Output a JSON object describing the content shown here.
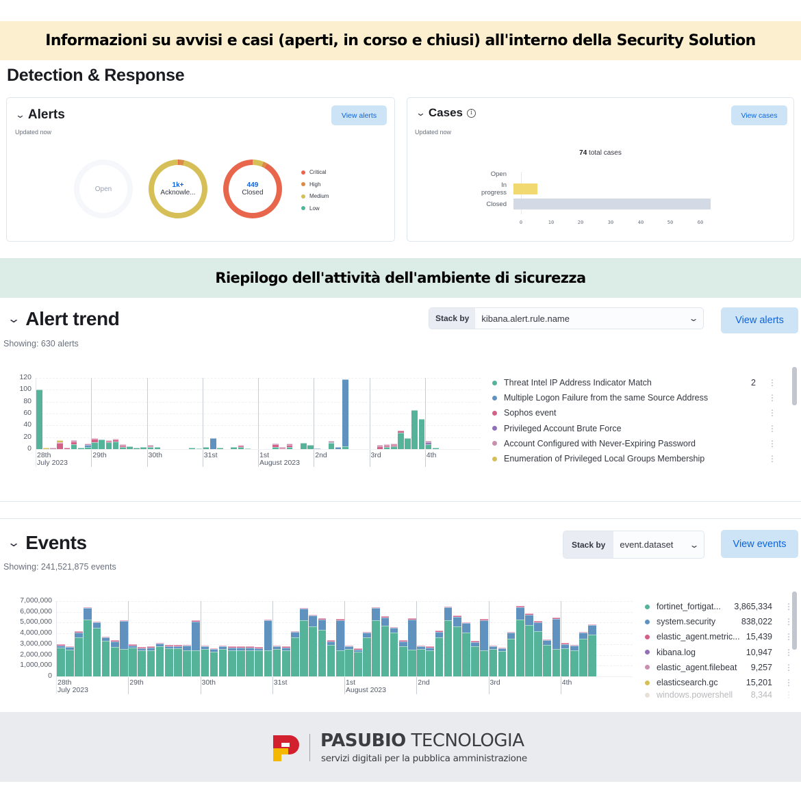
{
  "banners": {
    "top": "Informazioni su avvisi e casi (aperti, in corso e chiusi) all'interno della Security Solution",
    "middle": "Riepilogo dell'attività dell'ambiente di sicurezza"
  },
  "section_title": "Detection & Response",
  "alerts_panel": {
    "title": "Alerts",
    "updated": "Updated now",
    "button": "View alerts",
    "donuts": [
      {
        "value": "",
        "label": "Open"
      },
      {
        "value": "1k+",
        "label": "Acknowle..."
      },
      {
        "value": "449",
        "label": "Closed"
      }
    ],
    "legend": [
      {
        "label": "Critical",
        "color": "#e7664c"
      },
      {
        "label": "High",
        "color": "#da8b45"
      },
      {
        "label": "Medium",
        "color": "#d6bf57"
      },
      {
        "label": "Low",
        "color": "#54b399"
      }
    ]
  },
  "cases_panel": {
    "title": "Cases",
    "info_icon": "info-icon",
    "updated": "Updated now",
    "button": "View cases",
    "total_number": "74",
    "total_label": " total cases",
    "rows": [
      {
        "label": "Open",
        "value": 0,
        "color": "#ffffff"
      },
      {
        "label": "In progress",
        "value": 8,
        "color": "#f1d86f"
      },
      {
        "label": "Closed",
        "value": 66,
        "color": "#d3dae6"
      }
    ],
    "ticks": [
      "0",
      "10",
      "20",
      "30",
      "40",
      "50",
      "60"
    ]
  },
  "alert_trend": {
    "title": "Alert trend",
    "showing": "Showing: 630 alerts",
    "stack_by_label": "Stack by",
    "stack_by_value": "kibana.alert.rule.name",
    "button": "View alerts",
    "legend": [
      {
        "label": "Threat Intel IP Address Indicator Match",
        "value": "2",
        "color": "#54b399"
      },
      {
        "label": "Multiple Logon Failure from the same Source Address",
        "value": "",
        "color": "#6092c0"
      },
      {
        "label": "Sophos event",
        "value": "",
        "color": "#d36086"
      },
      {
        "label": "Privileged Account Brute Force",
        "value": "",
        "color": "#9170b8"
      },
      {
        "label": "Account Configured with Never-Expiring Password",
        "value": "",
        "color": "#ca8eae"
      },
      {
        "label": "Enumeration of Privileged Local Groups Membership",
        "value": "",
        "color": "#d6bf57"
      }
    ]
  },
  "events": {
    "title": "Events",
    "showing": "Showing: 241,521,875 events",
    "stack_by_label": "Stack by",
    "stack_by_value": "event.dataset",
    "button": "View events",
    "legend": [
      {
        "label": "fortinet_fortigat...",
        "value": "3,865,334",
        "color": "#54b399"
      },
      {
        "label": "system.security",
        "value": "838,022",
        "color": "#6092c0"
      },
      {
        "label": "elastic_agent.metric...",
        "value": "15,439",
        "color": "#d36086"
      },
      {
        "label": "kibana.log",
        "value": "10,947",
        "color": "#9170b8"
      },
      {
        "label": "elastic_agent.filebeat",
        "value": "9,257",
        "color": "#ca8eae"
      },
      {
        "label": "elasticsearch.gc",
        "value": "15,201",
        "color": "#d6bf57"
      },
      {
        "label": "windows.powershell",
        "value": "8,344",
        "color": "#b9a888"
      }
    ]
  },
  "footer": {
    "brand_bold": "PASUBIO",
    "brand_light": " TECNOLOGIA",
    "tagline": "servizi digitali per la pubblica amministrazione"
  },
  "chart_data": [
    {
      "type": "pie",
      "title": "Alerts by status",
      "series": [
        {
          "name": "Open",
          "label": "",
          "values": []
        },
        {
          "name": "Acknowledged",
          "label": "1k+",
          "values": [
            {
              "severity": "Critical",
              "share": 0.005
            },
            {
              "severity": "High",
              "share": 0.03
            },
            {
              "severity": "Medium",
              "share": 0.965
            }
          ]
        },
        {
          "name": "Closed",
          "label": "449",
          "values": [
            {
              "severity": "Medium",
              "share": 0.06
            },
            {
              "severity": "High",
              "share": 0.02
            },
            {
              "severity": "Critical",
              "share": 0.92
            }
          ]
        }
      ],
      "legend": [
        "Critical",
        "High",
        "Medium",
        "Low"
      ]
    },
    {
      "type": "bar",
      "orientation": "horizontal",
      "title": "74 total cases",
      "categories": [
        "Open",
        "In progress",
        "Closed"
      ],
      "values": [
        0,
        8,
        66
      ],
      "xlim": [
        0,
        66
      ],
      "xticks": [
        0,
        10,
        20,
        30,
        40,
        50,
        60
      ]
    },
    {
      "type": "bar",
      "stacked": true,
      "title": "Alert trend",
      "ylabel": "",
      "ylim": [
        0,
        120
      ],
      "yticks": [
        0,
        20,
        40,
        60,
        80,
        100,
        120
      ],
      "x_day_labels": [
        "28th July 2023",
        "29th",
        "30th",
        "31st",
        "1st August 2023",
        "2nd",
        "3rd",
        "4th"
      ],
      "bins_per_day": 8,
      "series": [
        {
          "name": "Threat Intel IP Address Indicator Match",
          "values": [
            100,
            0,
            0,
            0,
            0,
            8,
            2,
            4,
            12,
            16,
            12,
            13,
            4,
            5,
            2,
            3,
            3,
            4,
            0,
            0,
            0,
            0,
            2,
            1,
            3,
            0,
            2,
            0,
            4,
            4,
            1,
            0,
            0,
            0,
            4,
            0,
            4,
            0,
            10,
            7,
            0,
            0,
            10,
            0,
            5,
            0,
            0,
            0,
            0,
            0,
            4,
            5,
            28,
            18,
            66,
            51,
            8,
            2
          ]
        },
        {
          "name": "Multiple Logon Failure from the same Source Address",
          "values": [
            0,
            0,
            0,
            0,
            0,
            0,
            0,
            3,
            0,
            0,
            0,
            0,
            0,
            0,
            0,
            0,
            0,
            0,
            0,
            0,
            0,
            0,
            0,
            0,
            0,
            19,
            0,
            0,
            0,
            0,
            0,
            0,
            0,
            0,
            0,
            0,
            0,
            0,
            0,
            0,
            1,
            0,
            2,
            3,
            113,
            0,
            0,
            0,
            0,
            0,
            0,
            0,
            0,
            0,
            0,
            0,
            0,
            0
          ]
        },
        {
          "name": "Sophos event",
          "values": [
            0,
            0,
            0,
            10,
            2,
            5,
            0,
            0,
            5,
            0,
            1,
            3,
            2,
            0,
            0,
            0,
            1,
            0,
            0,
            0,
            0,
            0,
            0,
            0,
            0,
            0,
            0,
            0,
            0,
            1,
            0,
            0,
            0,
            0,
            4,
            1,
            3,
            0,
            0,
            0,
            0,
            0,
            0,
            0,
            0,
            0,
            0,
            0,
            0,
            5,
            1,
            2,
            3,
            0,
            0,
            0,
            0,
            0
          ]
        },
        {
          "name": "Privileged Account Brute Force",
          "values": [
            0,
            0,
            0,
            0,
            0,
            0,
            0,
            0,
            0,
            0,
            0,
            0,
            0,
            0,
            0,
            0,
            0,
            0,
            0,
            0,
            0,
            0,
            0,
            0,
            0,
            0,
            0,
            0,
            0,
            0,
            0,
            0,
            0,
            0,
            1,
            0,
            0,
            0,
            0,
            0,
            0,
            0,
            0,
            0,
            0,
            0,
            0,
            0,
            0,
            0,
            0,
            0,
            0,
            0,
            0,
            0,
            4,
            0
          ]
        },
        {
          "name": "Account Configured with Never-Expiring Password",
          "values": [
            0,
            0,
            2,
            1,
            0,
            1,
            0,
            1,
            1,
            0,
            1,
            1,
            1,
            0,
            0,
            0,
            1,
            0,
            0,
            0,
            0,
            0,
            0,
            0,
            0,
            0,
            0,
            0,
            0,
            1,
            0,
            0,
            0,
            0,
            0,
            1,
            1,
            0,
            0,
            0,
            0,
            0,
            1,
            0,
            0,
            0,
            0,
            0,
            0,
            1,
            2,
            2,
            0,
            0,
            0,
            0,
            1,
            0
          ]
        },
        {
          "name": "Enumeration of Privileged Local Groups Membership",
          "values": [
            0,
            2,
            0,
            3,
            0,
            0,
            0,
            0,
            0,
            0,
            0,
            0,
            0,
            0,
            0,
            0,
            0,
            0,
            0,
            0,
            0,
            0,
            0,
            0,
            0,
            0,
            0,
            0,
            0,
            0,
            0,
            0,
            0,
            0,
            0,
            0,
            0,
            0,
            0,
            0,
            0,
            0,
            0,
            0,
            0,
            0,
            0,
            0,
            0,
            0,
            0,
            0,
            0,
            0,
            0,
            0,
            0,
            0
          ]
        }
      ]
    },
    {
      "type": "bar",
      "stacked": true,
      "title": "Events",
      "ylim": [
        0,
        7000000
      ],
      "yticks": [
        0,
        1000000,
        2000000,
        3000000,
        4000000,
        5000000,
        6000000,
        7000000
      ],
      "x_day_labels": [
        "28th July 2023",
        "29th",
        "30th",
        "31st",
        "1st August 2023",
        "2nd",
        "3rd",
        "4th"
      ],
      "bins_per_day": 8,
      "series": [
        {
          "name": "fortinet_fortigat...",
          "values": [
            2650000,
            2500000,
            3600000,
            5300000,
            4500000,
            3300000,
            2750000,
            2550000,
            2650000,
            2400000,
            2450000,
            2800000,
            2600000,
            2600000,
            2450000,
            2400000,
            2550000,
            2300000,
            2550000,
            2450000,
            2450000,
            2450000,
            2400000,
            2400000,
            2550000,
            2450000,
            3650000,
            5250000,
            4650000,
            4300000,
            2900000,
            2450000,
            2550000,
            2300000,
            3600000,
            5250000,
            4700000,
            4100000,
            2800000,
            2500000,
            2550000,
            2450000,
            3600000,
            5250000,
            4650000,
            4100000,
            2800000,
            2450000,
            2550000,
            2350000,
            3500000,
            5300000,
            4800000,
            4200000,
            2950000,
            2550000,
            2600000,
            2450000,
            3500000,
            3900000
          ]
        },
        {
          "name": "system.security",
          "values": [
            230000,
            230000,
            480000,
            1050000,
            520000,
            300000,
            500000,
            2600000,
            230000,
            230000,
            230000,
            230000,
            230000,
            230000,
            400000,
            2700000,
            230000,
            230000,
            230000,
            230000,
            230000,
            230000,
            230000,
            2800000,
            230000,
            230000,
            480000,
            1050000,
            1000000,
            1000000,
            350000,
            2800000,
            230000,
            200000,
            450000,
            1100000,
            800000,
            400000,
            450000,
            2800000,
            230000,
            230000,
            550000,
            1150000,
            900000,
            850000,
            400000,
            2800000,
            230000,
            230000,
            550000,
            1150000,
            950000,
            850000,
            400000,
            2800000,
            400000,
            400000,
            550000,
            850000
          ]
        },
        {
          "name": "elastic_agent.metric...",
          "values": [
            50000,
            50000,
            50000,
            50000,
            50000,
            50000,
            50000,
            50000,
            50000,
            50000,
            50000,
            50000,
            50000,
            50000,
            50000,
            50000,
            50000,
            50000,
            50000,
            50000,
            50000,
            50000,
            50000,
            50000,
            50000,
            50000,
            50000,
            50000,
            50000,
            50000,
            50000,
            50000,
            50000,
            50000,
            50000,
            50000,
            50000,
            50000,
            50000,
            50000,
            50000,
            50000,
            50000,
            50000,
            50000,
            50000,
            50000,
            50000,
            50000,
            50000,
            50000,
            50000,
            50000,
            50000,
            50000,
            50000,
            50000,
            50000,
            50000,
            50000
          ]
        }
      ]
    }
  ]
}
